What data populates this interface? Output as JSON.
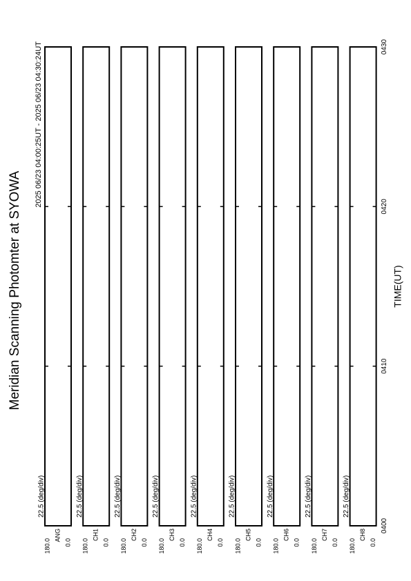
{
  "chart_data": {
    "type": "strip",
    "title": "Meridian Scanning Photomter at SYOWA",
    "subtitle": "2025 06/23 04:00:25UT - 2025 06/23 04:30:24UT",
    "x_label": "TIME(UT)",
    "xlim": [
      0,
      30
    ],
    "xticks": [
      {
        "value": 0,
        "label": "0400"
      },
      {
        "value": 10,
        "label": "0410"
      },
      {
        "value": 20,
        "label": "0420"
      },
      {
        "value": 30,
        "label": "0430"
      }
    ],
    "panels": [
      {
        "name": "ANG",
        "scale_label": "22.5 (deg/div)",
        "ylim": [
          0,
          180
        ],
        "yticks": [
          {
            "value": 180,
            "label": "180.0"
          },
          {
            "value": 0,
            "label": "0.0"
          }
        ]
      },
      {
        "name": "CH1",
        "scale_label": "22.5 (deg/div)",
        "ylim": [
          0,
          180
        ],
        "yticks": [
          {
            "value": 180,
            "label": "180.0"
          },
          {
            "value": 0,
            "label": "0.0"
          }
        ]
      },
      {
        "name": "CH2",
        "scale_label": "22.5 (deg/div)",
        "ylim": [
          0,
          180
        ],
        "yticks": [
          {
            "value": 180,
            "label": "180.0"
          },
          {
            "value": 0,
            "label": "0.0"
          }
        ]
      },
      {
        "name": "CH3",
        "scale_label": "22.5 (deg/div)",
        "ylim": [
          0,
          180
        ],
        "yticks": [
          {
            "value": 180,
            "label": "180.0"
          },
          {
            "value": 0,
            "label": "0.0"
          }
        ]
      },
      {
        "name": "CH4",
        "scale_label": "22.5 (deg/div)",
        "ylim": [
          0,
          180
        ],
        "yticks": [
          {
            "value": 180,
            "label": "180.0"
          },
          {
            "value": 0,
            "label": "0.0"
          }
        ]
      },
      {
        "name": "CH5",
        "scale_label": "22.5 (deg/div)",
        "ylim": [
          0,
          180
        ],
        "yticks": [
          {
            "value": 180,
            "label": "180.0"
          },
          {
            "value": 0,
            "label": "0.0"
          }
        ]
      },
      {
        "name": "CH6",
        "scale_label": "22.5 (deg/div)",
        "ylim": [
          0,
          180
        ],
        "yticks": [
          {
            "value": 180,
            "label": "180.0"
          },
          {
            "value": 0,
            "label": "0.0"
          }
        ]
      },
      {
        "name": "CH7",
        "scale_label": "22.5 (deg/div)",
        "ylim": [
          0,
          180
        ],
        "yticks": [
          {
            "value": 180,
            "label": "180.0"
          },
          {
            "value": 0,
            "label": "0.0"
          }
        ]
      },
      {
        "name": "CH8",
        "scale_label": "22.5 (deg/div)",
        "ylim": [
          0,
          180
        ],
        "yticks": [
          {
            "value": 180,
            "label": "180.0"
          },
          {
            "value": 0,
            "label": "0.0"
          }
        ]
      }
    ]
  }
}
